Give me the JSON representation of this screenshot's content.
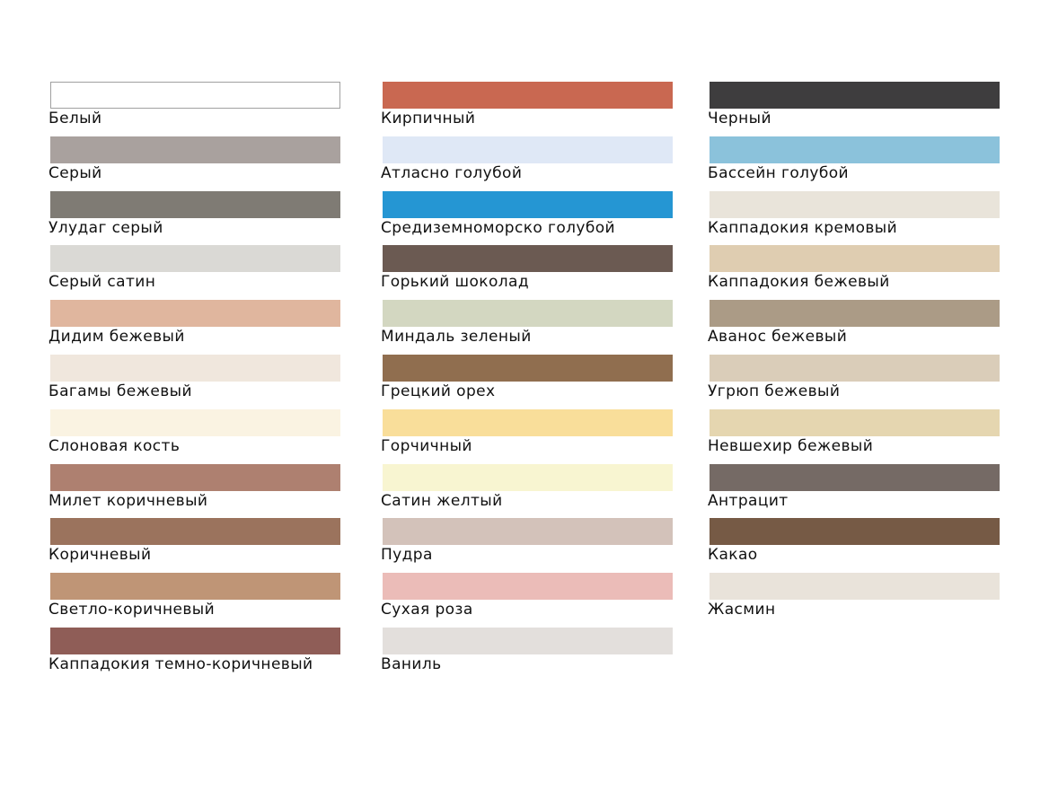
{
  "columns": [
    {
      "items": [
        {
          "name": "Белый",
          "color": "#ffffff",
          "border": "#a0a0a0"
        },
        {
          "name": "Серый",
          "color": "#a9a19e"
        },
        {
          "name": "Улудаг серый",
          "color": "#7f7b74"
        },
        {
          "name": "Серый сатин",
          "color": "#dad9d5"
        },
        {
          "name": "Дидим бежевый",
          "color": "#e0b69e"
        },
        {
          "name": "Багамы бежевый",
          "color": "#f0e7dd"
        },
        {
          "name": "Слоновая кость",
          "color": "#faf3e2"
        },
        {
          "name": "Милет коричневый",
          "color": "#ae8070"
        },
        {
          "name": "Коричневый",
          "color": "#9b735d"
        },
        {
          "name": "Светло-коричневый",
          "color": "#bf9576"
        },
        {
          "name": "Каппадокия темно-коричневый",
          "color": "#8f5d57"
        }
      ]
    },
    {
      "items": [
        {
          "name": "Кирпичный",
          "color": "#c96851"
        },
        {
          "name": "Атласно голубой",
          "color": "#dfe8f6"
        },
        {
          "name": "Средиземноморско голубой",
          "color": "#2596d3"
        },
        {
          "name": "Горький шоколад",
          "color": "#6b5a52"
        },
        {
          "name": "Миндаль зеленый",
          "color": "#d3d7c1"
        },
        {
          "name": "Грецкий орех",
          "color": "#906e4f"
        },
        {
          "name": "Горчичный",
          "color": "#f9de9a"
        },
        {
          "name": "Сатин желтый",
          "color": "#f8f5d1"
        },
        {
          "name": "Пудра",
          "color": "#d3c2ba"
        },
        {
          "name": "Сухая роза",
          "color": "#ebbcb8"
        },
        {
          "name": "Ваниль",
          "color": "#e3dfdc"
        }
      ]
    },
    {
      "items": [
        {
          "name": "Черный",
          "color": "#3e3d3e"
        },
        {
          "name": "Бассейн голубой",
          "color": "#8bc2db"
        },
        {
          "name": "Каппадокия кремовый",
          "color": "#e9e4da"
        },
        {
          "name": "Каппадокия бежевый",
          "color": "#dfcdb1"
        },
        {
          "name": "Аванос бежевый",
          "color": "#ab9b86"
        },
        {
          "name": "Угрюп бежевый",
          "color": "#dacdb9"
        },
        {
          "name": "Невшехир бежевый",
          "color": "#e5d6b0"
        },
        {
          "name": "Антрацит",
          "color": "#756a65"
        },
        {
          "name": "Какао",
          "color": "#765a45"
        },
        {
          "name": "Жасмин",
          "color": "#e9e3da"
        }
      ]
    }
  ]
}
